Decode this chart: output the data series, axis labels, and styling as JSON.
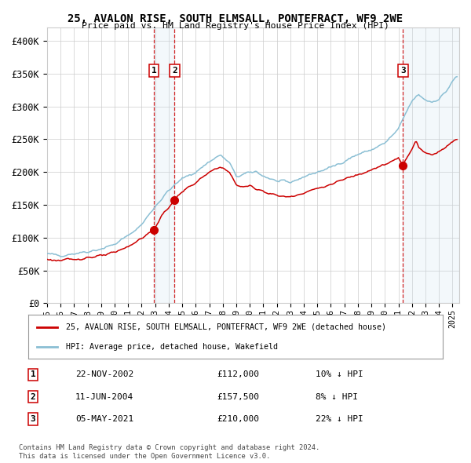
{
  "title": "25, AVALON RISE, SOUTH ELMSALL, PONTEFRACT, WF9 2WE",
  "subtitle": "Price paid vs. HM Land Registry's House Price Index (HPI)",
  "xlim_start": 1995.0,
  "xlim_end": 2025.5,
  "ylim": [
    0,
    420000
  ],
  "yticks": [
    0,
    50000,
    100000,
    150000,
    200000,
    250000,
    300000,
    350000,
    400000
  ],
  "ytick_labels": [
    "£0",
    "£50K",
    "£100K",
    "£150K",
    "£200K",
    "£250K",
    "£300K",
    "£350K",
    "£400K"
  ],
  "sale_dates_num": [
    2002.896,
    2004.44,
    2021.342
  ],
  "sale_prices": [
    112000,
    157500,
    210000
  ],
  "sale_labels": [
    "1",
    "2",
    "3"
  ],
  "sale_date_strs": [
    "22-NOV-2002",
    "11-JUN-2004",
    "05-MAY-2021"
  ],
  "sale_price_strs": [
    "£112,000",
    "£157,500",
    "£210,000"
  ],
  "sale_hpi_strs": [
    "10% ↓ HPI",
    "8% ↓ HPI",
    "22% ↓ HPI"
  ],
  "hpi_color": "#8bbfd4",
  "price_color": "#cc0000",
  "dot_color": "#cc0000",
  "vline_color": "#cc0000",
  "shade_color": "#cce0f0",
  "grid_color": "#cccccc",
  "bg_color": "#ffffff",
  "legend_label_red": "25, AVALON RISE, SOUTH ELMSALL, PONTEFRACT, WF9 2WE (detached house)",
  "legend_label_blue": "HPI: Average price, detached house, Wakefield",
  "footer1": "Contains HM Land Registry data © Crown copyright and database right 2024.",
  "footer2": "This data is licensed under the Open Government Licence v3.0.",
  "hpi_anchors": [
    [
      1995.0,
      75000
    ],
    [
      1996.0,
      73000
    ],
    [
      1997.0,
      76000
    ],
    [
      1998.0,
      79000
    ],
    [
      1999.0,
      83000
    ],
    [
      2000.0,
      90000
    ],
    [
      2001.0,
      103000
    ],
    [
      2002.0,
      120000
    ],
    [
      2003.0,
      148000
    ],
    [
      2004.0,
      172000
    ],
    [
      2005.0,
      190000
    ],
    [
      2006.0,
      200000
    ],
    [
      2007.0,
      216000
    ],
    [
      2007.8,
      226000
    ],
    [
      2008.5,
      214000
    ],
    [
      2009.0,
      193000
    ],
    [
      2009.5,
      196000
    ],
    [
      2010.0,
      199000
    ],
    [
      2010.5,
      201000
    ],
    [
      2011.0,
      194000
    ],
    [
      2012.0,
      186000
    ],
    [
      2013.0,
      184000
    ],
    [
      2014.0,
      193000
    ],
    [
      2015.0,
      200000
    ],
    [
      2016.0,
      207000
    ],
    [
      2017.0,
      217000
    ],
    [
      2018.0,
      227000
    ],
    [
      2019.0,
      234000
    ],
    [
      2020.0,
      244000
    ],
    [
      2021.0,
      265000
    ],
    [
      2021.5,
      288000
    ],
    [
      2022.0,
      308000
    ],
    [
      2022.5,
      318000
    ],
    [
      2023.0,
      310000
    ],
    [
      2023.5,
      307000
    ],
    [
      2024.0,
      312000
    ],
    [
      2024.5,
      322000
    ],
    [
      2025.0,
      338000
    ],
    [
      2025.3,
      345000
    ]
  ],
  "red_anchors": [
    [
      1995.0,
      67000
    ],
    [
      1996.0,
      65000
    ],
    [
      1997.0,
      67000
    ],
    [
      1998.0,
      70000
    ],
    [
      1999.0,
      72000
    ],
    [
      2000.0,
      77000
    ],
    [
      2001.0,
      87000
    ],
    [
      2002.0,
      99000
    ],
    [
      2002.896,
      112000
    ],
    [
      2003.5,
      134000
    ],
    [
      2004.44,
      157500
    ],
    [
      2004.8,
      167000
    ],
    [
      2005.5,
      177000
    ],
    [
      2006.0,
      184000
    ],
    [
      2007.0,
      199000
    ],
    [
      2007.8,
      209000
    ],
    [
      2008.5,
      199000
    ],
    [
      2009.0,
      181000
    ],
    [
      2009.5,
      177000
    ],
    [
      2010.0,
      179000
    ],
    [
      2011.0,
      171000
    ],
    [
      2012.0,
      164000
    ],
    [
      2013.0,
      162000
    ],
    [
      2014.0,
      169000
    ],
    [
      2015.0,
      175000
    ],
    [
      2016.0,
      181000
    ],
    [
      2017.0,
      189000
    ],
    [
      2018.0,
      197000
    ],
    [
      2019.0,
      204000
    ],
    [
      2020.0,
      211000
    ],
    [
      2021.0,
      221000
    ],
    [
      2021.342,
      210000
    ],
    [
      2021.5,
      218000
    ],
    [
      2022.0,
      236000
    ],
    [
      2022.3,
      249000
    ],
    [
      2022.5,
      237000
    ],
    [
      2023.0,
      229000
    ],
    [
      2023.5,
      227000
    ],
    [
      2024.0,
      231000
    ],
    [
      2024.5,
      239000
    ],
    [
      2025.0,
      247000
    ],
    [
      2025.3,
      250000
    ]
  ]
}
